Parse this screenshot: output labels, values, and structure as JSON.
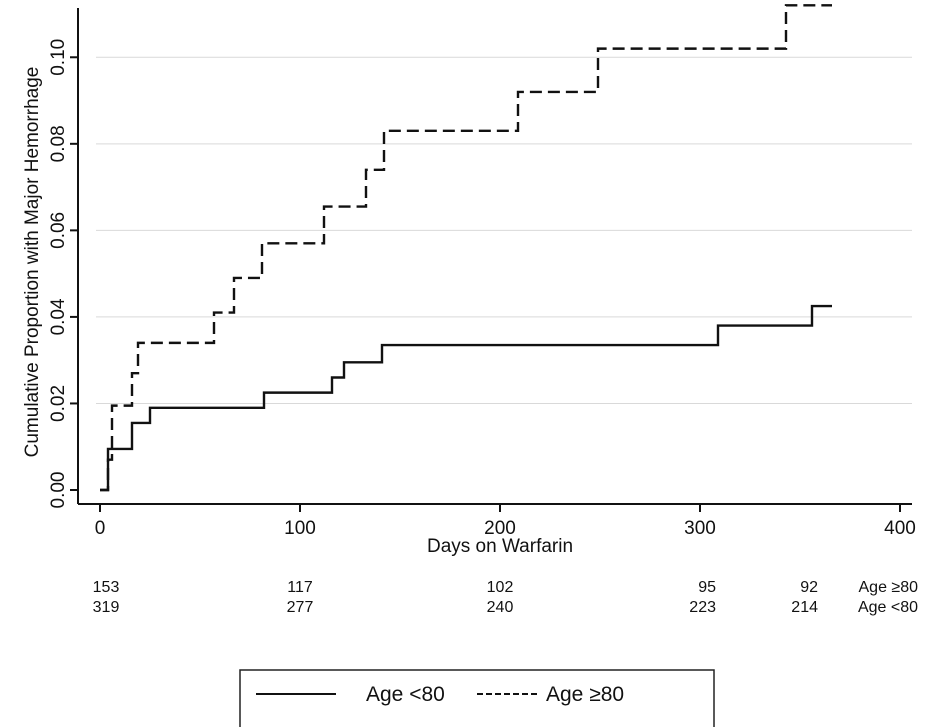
{
  "chart_data": {
    "type": "line",
    "line_style": "step",
    "xlabel": "Days on Warfarin",
    "ylabel": "Cumulative Proportion with Major Hemorrhage",
    "xlim": [
      0,
      400
    ],
    "ylim": [
      0,
      0.11
    ],
    "xticks": [
      0,
      100,
      200,
      300,
      400
    ],
    "yticks": [
      0.0,
      0.02,
      0.04,
      0.06,
      0.08,
      0.1
    ],
    "ytick_labels": [
      "0.00",
      "0.02",
      "0.04",
      "0.06",
      "0.08",
      "0.10"
    ],
    "grid": "horizontal",
    "series": [
      {
        "name": "Age <80",
        "style": "solid",
        "color": "#111111",
        "x": [
          0,
          4,
          8,
          16,
          25,
          82,
          116,
          122,
          141,
          309,
          356,
          366
        ],
        "y": [
          0.0,
          0.0095,
          0.0095,
          0.0155,
          0.019,
          0.0225,
          0.026,
          0.0295,
          0.0335,
          0.038,
          0.0425,
          0.0425
        ]
      },
      {
        "name": "Age ≥80",
        "style": "dashed",
        "color": "#111111",
        "x": [
          0,
          4,
          6,
          16,
          19,
          57,
          67,
          81,
          112,
          133,
          142,
          209,
          249,
          343,
          366
        ],
        "y": [
          0.0,
          0.007,
          0.0195,
          0.027,
          0.034,
          0.041,
          0.049,
          0.057,
          0.0655,
          0.074,
          0.083,
          0.092,
          0.102,
          0.112,
          0.112
        ]
      }
    ],
    "risk_table": {
      "rows": [
        {
          "label": "Age ≥80",
          "days": [
            0,
            100,
            200,
            300,
            350
          ],
          "values": [
            "153",
            "117",
            "102",
            "95",
            "92"
          ]
        },
        {
          "label": "Age <80",
          "days": [
            0,
            100,
            200,
            300,
            350
          ],
          "values": [
            "319",
            "277",
            "240",
            "223",
            "214"
          ]
        }
      ]
    },
    "legend": {
      "placement": "bottom-center",
      "entries": [
        {
          "label": "Age <80",
          "style": "solid"
        },
        {
          "label": "Age ≥80",
          "style": "dashed"
        }
      ]
    }
  }
}
